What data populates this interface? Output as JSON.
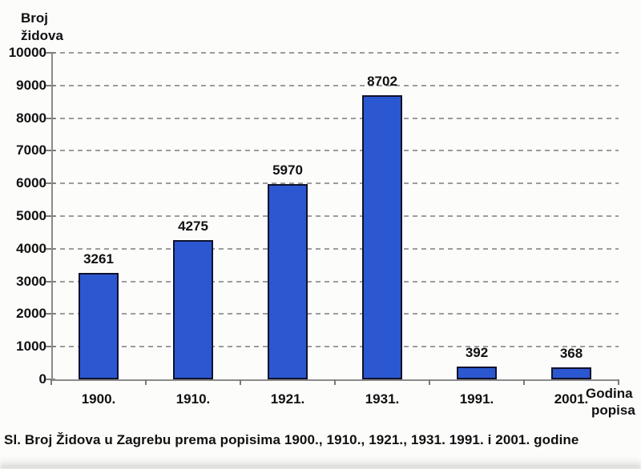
{
  "labels": {
    "y_axis_title_line1": "Broj",
    "y_axis_title_line2": "židova",
    "x_axis_title_line1": "Godina",
    "x_axis_title_line2": "popisa",
    "caption": "Sl. Broj Židova u Zagrebu prema popisima 1900., 1910., 1921., 1931. 1991. i 2001. godine"
  },
  "colors": {
    "bar_fill": "#2b58d1",
    "bar_border": "#11112b",
    "grid": "#9c9c9c",
    "axis": "#8a8a8a",
    "tick": "#7a7a7a",
    "text": "#111111",
    "background": "#fcfcfb"
  },
  "chart_data": {
    "type": "bar",
    "categories": [
      "1900.",
      "1910.",
      "1921.",
      "1931.",
      "1991.",
      "2001."
    ],
    "values": [
      3261,
      4275,
      5970,
      8702,
      392,
      368
    ],
    "title": "",
    "xlabel": "Godina popisa",
    "ylabel": "Broj židova",
    "ylim": [
      0,
      10000
    ],
    "ytick_step": 1000,
    "ytick_labels": [
      "0",
      "1000",
      "2000",
      "3000",
      "4000",
      "5000",
      "6000",
      "7000",
      "8000",
      "9000",
      "10000"
    ],
    "grid": "horizontal dashed",
    "legend": "none",
    "data_labels": true
  }
}
